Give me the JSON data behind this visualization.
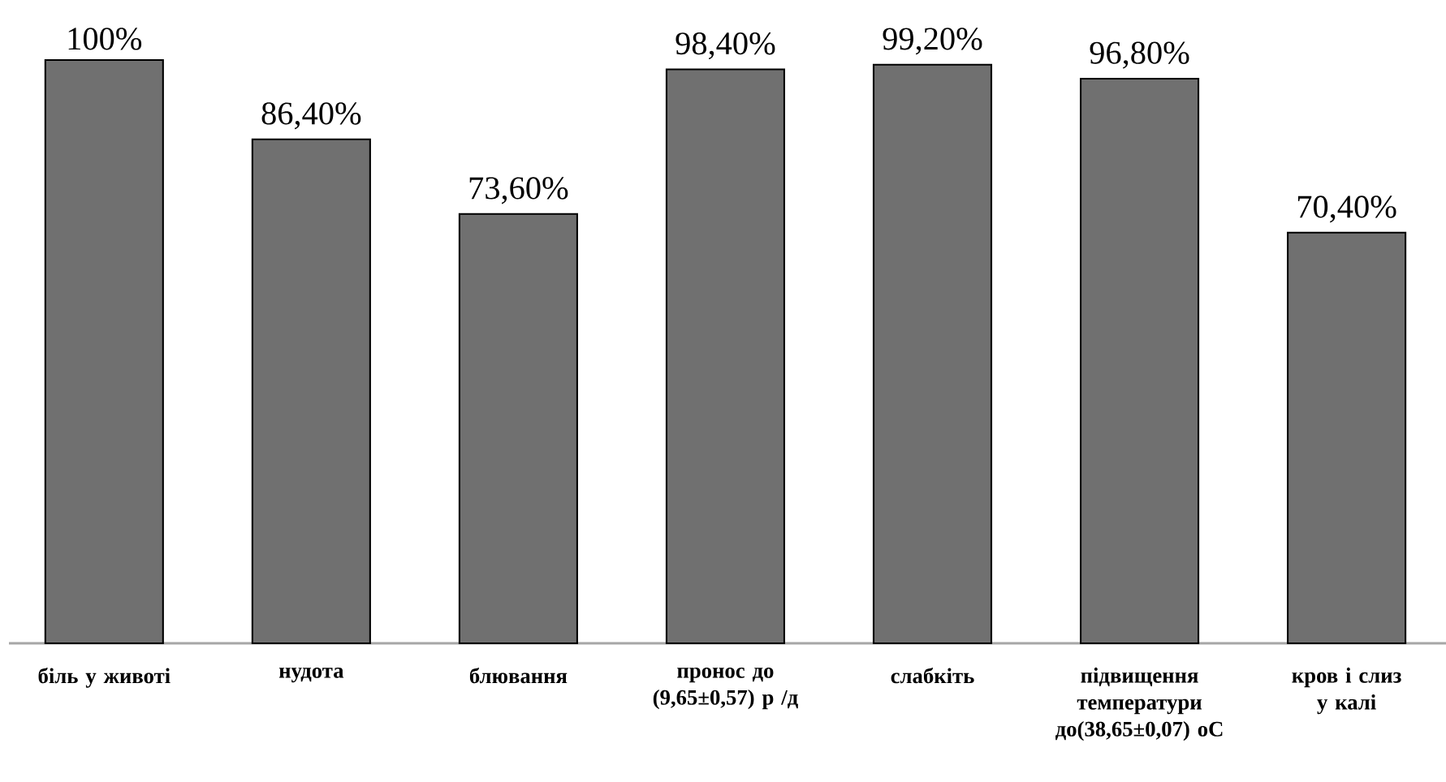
{
  "chart_data": {
    "type": "bar",
    "categories": [
      "біль у животі",
      "нудота",
      "блювання",
      "пронос до (9,65±0,57) р /д",
      "слабкіть",
      "підвищення температури до(38,65±0,07) оС",
      "кров і слиз у калі"
    ],
    "values": [
      100,
      86.4,
      73.6,
      98.4,
      99.2,
      96.8,
      70.4
    ],
    "value_labels": [
      "100%",
      "86,40%",
      "73,60%",
      "98,40%",
      "99,20%",
      "96,80%",
      "70,40%"
    ],
    "color": "#707070"
  }
}
